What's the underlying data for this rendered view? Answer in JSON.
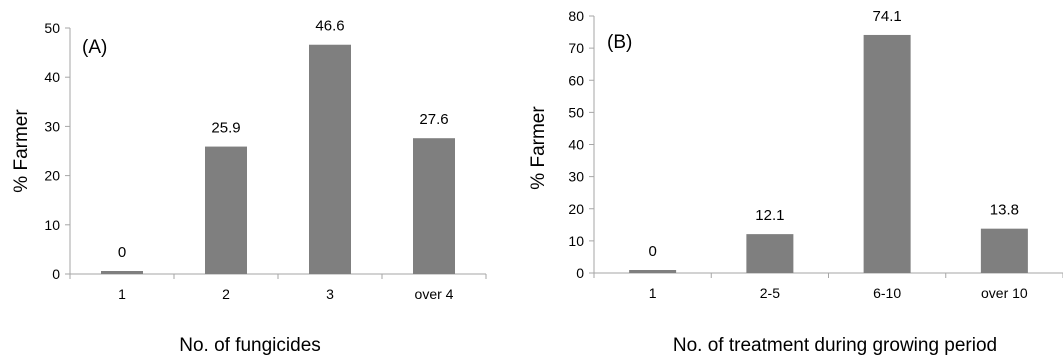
{
  "chart_data": [
    {
      "type": "bar",
      "panel_label": "(A)",
      "categories": [
        "1",
        "2",
        "3",
        "over 4"
      ],
      "values": [
        0,
        25.9,
        46.6,
        27.6
      ],
      "data_labels": [
        "0",
        "25.9",
        "46.6",
        "27.6"
      ],
      "xlabel": "No. of fungicides",
      "ylabel": "% Farmer",
      "ylim": [
        0,
        50
      ],
      "yticks": [
        "0",
        "10",
        "20",
        "30",
        "40",
        "50"
      ],
      "grid": false,
      "bar_color": "#7f7f7f"
    },
    {
      "type": "bar",
      "panel_label": "(B)",
      "categories": [
        "1",
        "2-5",
        "6-10",
        "over 10"
      ],
      "values": [
        0,
        12.1,
        74.1,
        13.8
      ],
      "data_labels": [
        "0",
        "12.1",
        "74.1",
        "13.8"
      ],
      "xlabel": "No. of treatment during growing period",
      "ylabel": "% Farmer",
      "ylim": [
        0,
        80
      ],
      "yticks": [
        "0",
        "10",
        "20",
        "30",
        "40",
        "50",
        "60",
        "70",
        "80"
      ],
      "grid": false,
      "bar_color": "#7f7f7f"
    }
  ]
}
